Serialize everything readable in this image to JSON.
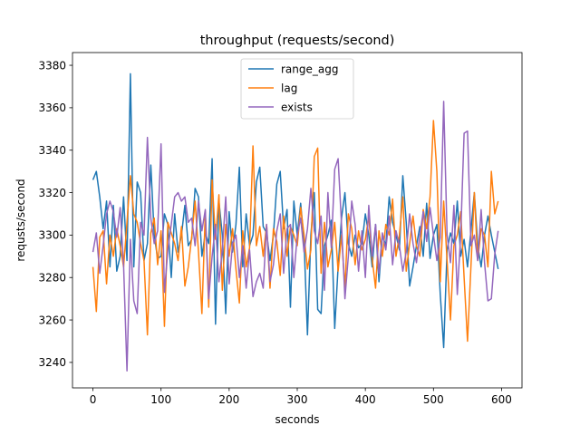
{
  "chart_data": {
    "type": "line",
    "title": "throughput (requests/second)",
    "xlabel": "seconds",
    "ylabel": "requsts/second",
    "xlim": [
      -30,
      630
    ],
    "ylim": [
      3228,
      3386
    ],
    "xticks": [
      0,
      100,
      200,
      300,
      400,
      500,
      600
    ],
    "yticks": [
      3240,
      3260,
      3280,
      3300,
      3320,
      3340,
      3360,
      3380
    ],
    "grid": false,
    "legend_position": "top-center",
    "series": [
      {
        "name": "range_agg",
        "color": "#1f77b4",
        "x": [
          0,
          5,
          10,
          15,
          20,
          25,
          30,
          35,
          40,
          45,
          50,
          55,
          60,
          65,
          70,
          75,
          80,
          85,
          90,
          95,
          100,
          105,
          110,
          115,
          120,
          125,
          130,
          135,
          140,
          145,
          150,
          155,
          160,
          165,
          170,
          175,
          180,
          185,
          190,
          195,
          200,
          205,
          210,
          215,
          220,
          225,
          230,
          235,
          240,
          245,
          250,
          255,
          260,
          265,
          270,
          275,
          280,
          285,
          290,
          295,
          300,
          305,
          310,
          315,
          320,
          325,
          330,
          335,
          340,
          345,
          350,
          355,
          360,
          365,
          370,
          375,
          380,
          385,
          390,
          395,
          400,
          405,
          410,
          415,
          420,
          425,
          430,
          435,
          440,
          445,
          450,
          455,
          460,
          465,
          470,
          475,
          480,
          485,
          490,
          495,
          500,
          505,
          510,
          515,
          520,
          525,
          530,
          535,
          540,
          545,
          550,
          555,
          560,
          565,
          570,
          575,
          580,
          585,
          590,
          595
        ],
        "values": [
          3326,
          3330,
          3318,
          3303,
          3316,
          3285,
          3314,
          3283,
          3290,
          3318,
          3288,
          3376,
          3285,
          3325,
          3320,
          3288,
          3296,
          3333,
          3300,
          3289,
          3290,
          3310,
          3305,
          3280,
          3310,
          3292,
          3300,
          3314,
          3295,
          3298,
          3322,
          3318,
          3290,
          3301,
          3296,
          3336,
          3258,
          3316,
          3300,
          3263,
          3311,
          3292,
          3305,
          3332,
          3285,
          3310,
          3295,
          3300,
          3325,
          3332,
          3304,
          3301,
          3288,
          3300,
          3324,
          3330,
          3303,
          3312,
          3266,
          3316,
          3300,
          3315,
          3297,
          3253,
          3300,
          3320,
          3265,
          3263,
          3295,
          3300,
          3307,
          3256,
          3285,
          3308,
          3320,
          3296,
          3290,
          3300,
          3294,
          3296,
          3310,
          3300,
          3285,
          3305,
          3278,
          3300,
          3295,
          3318,
          3306,
          3300,
          3293,
          3328,
          3306,
          3276,
          3285,
          3295,
          3304,
          3290,
          3315,
          3289,
          3300,
          3305,
          3272,
          3247,
          3293,
          3301,
          3296,
          3316,
          3290,
          3298,
          3285,
          3302,
          3320,
          3295,
          3285,
          3300,
          3309,
          3300,
          3292,
          3284
        ]
      },
      {
        "name": "lag",
        "color": "#ff7f0e",
        "x": [
          0,
          5,
          10,
          15,
          20,
          25,
          30,
          35,
          40,
          45,
          50,
          55,
          60,
          65,
          70,
          75,
          80,
          85,
          90,
          95,
          100,
          105,
          110,
          115,
          120,
          125,
          130,
          135,
          140,
          145,
          150,
          155,
          160,
          165,
          170,
          175,
          180,
          185,
          190,
          195,
          200,
          205,
          210,
          215,
          220,
          225,
          230,
          235,
          240,
          245,
          250,
          255,
          260,
          265,
          270,
          275,
          280,
          285,
          290,
          295,
          300,
          305,
          310,
          315,
          320,
          325,
          330,
          335,
          340,
          345,
          350,
          355,
          360,
          365,
          370,
          375,
          380,
          385,
          390,
          395,
          400,
          405,
          410,
          415,
          420,
          425,
          430,
          435,
          440,
          445,
          450,
          455,
          460,
          465,
          470,
          475,
          480,
          485,
          490,
          495,
          500,
          505,
          510,
          515,
          520,
          525,
          530,
          535,
          540,
          545,
          550,
          555,
          560,
          565,
          570,
          575,
          580,
          585,
          590,
          595
        ],
        "values": [
          3285,
          3264,
          3299,
          3302,
          3277,
          3300,
          3290,
          3303,
          3295,
          3285,
          3306,
          3328,
          3310,
          3306,
          3296,
          3288,
          3253,
          3301,
          3308,
          3286,
          3302,
          3257,
          3306,
          3301,
          3296,
          3288,
          3304,
          3276,
          3285,
          3299,
          3316,
          3292,
          3263,
          3311,
          3266,
          3326,
          3298,
          3319,
          3274,
          3305,
          3290,
          3303,
          3284,
          3268,
          3302,
          3285,
          3294,
          3342,
          3295,
          3304,
          3290,
          3305,
          3275,
          3303,
          3297,
          3281,
          3309,
          3290,
          3304,
          3300,
          3295,
          3313,
          3300,
          3284,
          3293,
          3337,
          3341,
          3282,
          3306,
          3285,
          3293,
          3306,
          3283,
          3300,
          3275,
          3310,
          3303,
          3286,
          3302,
          3293,
          3298,
          3309,
          3289,
          3275,
          3302,
          3290,
          3305,
          3300,
          3317,
          3290,
          3300,
          3318,
          3283,
          3296,
          3309,
          3295,
          3290,
          3312,
          3303,
          3318,
          3354,
          3330,
          3278,
          3316,
          3288,
          3260,
          3295,
          3300,
          3311,
          3280,
          3250,
          3285,
          3320,
          3288,
          3303,
          3300,
          3285,
          3330,
          3310,
          3316
        ]
      },
      {
        "name": "exists",
        "color": "#9467bd",
        "x": [
          0,
          5,
          10,
          15,
          20,
          25,
          30,
          35,
          40,
          45,
          50,
          55,
          60,
          65,
          70,
          75,
          80,
          85,
          90,
          95,
          100,
          105,
          110,
          115,
          120,
          125,
          130,
          135,
          140,
          145,
          150,
          155,
          160,
          165,
          170,
          175,
          180,
          185,
          190,
          195,
          200,
          205,
          210,
          215,
          220,
          225,
          230,
          235,
          240,
          245,
          250,
          255,
          260,
          265,
          270,
          275,
          280,
          285,
          290,
          295,
          300,
          305,
          310,
          315,
          320,
          325,
          330,
          335,
          340,
          345,
          350,
          355,
          360,
          365,
          370,
          375,
          380,
          385,
          390,
          395,
          400,
          405,
          410,
          415,
          420,
          425,
          430,
          435,
          440,
          445,
          450,
          455,
          460,
          465,
          470,
          475,
          480,
          485,
          490,
          495,
          500,
          505,
          510,
          515,
          520,
          525,
          530,
          535,
          540,
          545,
          550,
          555,
          560,
          565,
          570,
          575,
          580,
          585,
          590,
          595
        ],
        "values": [
          3292,
          3301,
          3282,
          3295,
          3310,
          3316,
          3311,
          3299,
          3313,
          3286,
          3236,
          3298,
          3269,
          3263,
          3306,
          3300,
          3346,
          3308,
          3296,
          3302,
          3343,
          3273,
          3293,
          3305,
          3318,
          3320,
          3316,
          3318,
          3306,
          3308,
          3295,
          3316,
          3302,
          3312,
          3270,
          3290,
          3305,
          3278,
          3293,
          3318,
          3277,
          3296,
          3300,
          3280,
          3295,
          3275,
          3293,
          3271,
          3278,
          3282,
          3275,
          3305,
          3278,
          3286,
          3302,
          3310,
          3282,
          3303,
          3305,
          3280,
          3300,
          3308,
          3292,
          3303,
          3322,
          3302,
          3296,
          3309,
          3274,
          3320,
          3294,
          3331,
          3336,
          3305,
          3270,
          3290,
          3316,
          3305,
          3283,
          3302,
          3280,
          3314,
          3290,
          3305,
          3282,
          3301,
          3293,
          3309,
          3286,
          3302,
          3295,
          3283,
          3292,
          3310,
          3296,
          3287,
          3300,
          3311,
          3297,
          3313,
          3300,
          3288,
          3299,
          3363,
          3300,
          3287,
          3314,
          3272,
          3300,
          3348,
          3349,
          3295,
          3300,
          3288,
          3312,
          3287,
          3269,
          3270,
          3291,
          3302
        ]
      }
    ]
  }
}
